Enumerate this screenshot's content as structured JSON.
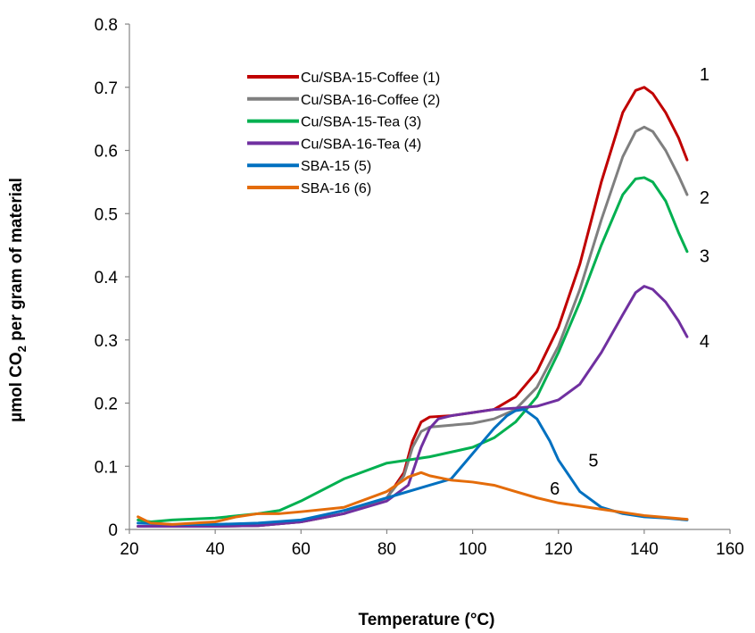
{
  "chart_data": {
    "type": "line",
    "xlabel": "Temperature (°C)",
    "ylabel": {
      "prefix": "µmol CO",
      "subscript": "2",
      "suffix": " per gram of material"
    },
    "xlim": [
      20,
      160
    ],
    "ylim": [
      0,
      0.8
    ],
    "xticks": [
      "20",
      "40",
      "60",
      "80",
      "100",
      "120",
      "140",
      "160"
    ],
    "yticks": [
      "0",
      "0.1",
      "0.2",
      "0.3",
      "0.4",
      "0.5",
      "0.6",
      "0.7",
      "0.8"
    ],
    "grid": false,
    "legend": "top-left",
    "series": [
      {
        "name": "Cu/SBA-15-Coffee (1)",
        "label": "1",
        "color": "#C00000",
        "x": [
          22,
          30,
          40,
          50,
          60,
          70,
          80,
          84,
          86,
          88,
          90,
          95,
          100,
          105,
          110,
          115,
          120,
          125,
          130,
          135,
          138,
          140,
          142,
          145,
          148,
          150
        ],
        "y": [
          0.005,
          0.005,
          0.005,
          0.006,
          0.012,
          0.025,
          0.05,
          0.09,
          0.14,
          0.17,
          0.178,
          0.18,
          0.185,
          0.19,
          0.21,
          0.25,
          0.32,
          0.42,
          0.55,
          0.66,
          0.695,
          0.7,
          0.69,
          0.66,
          0.62,
          0.585
        ]
      },
      {
        "name": "Cu/SBA-16-Coffee (2)",
        "label": "2",
        "color": "#7F7F7F",
        "x": [
          22,
          30,
          40,
          50,
          60,
          70,
          80,
          84,
          86,
          88,
          90,
          95,
          100,
          105,
          110,
          115,
          120,
          125,
          130,
          135,
          138,
          140,
          142,
          145,
          148,
          150
        ],
        "y": [
          0.005,
          0.005,
          0.005,
          0.006,
          0.012,
          0.025,
          0.05,
          0.085,
          0.13,
          0.155,
          0.162,
          0.165,
          0.168,
          0.175,
          0.19,
          0.225,
          0.29,
          0.38,
          0.49,
          0.59,
          0.63,
          0.637,
          0.63,
          0.6,
          0.56,
          0.53
        ]
      },
      {
        "name": "Cu/SBA-15-Tea (3)",
        "label": "3",
        "color": "#00B050",
        "x": [
          22,
          25,
          30,
          40,
          50,
          55,
          60,
          70,
          80,
          90,
          100,
          105,
          110,
          115,
          120,
          125,
          130,
          135,
          138,
          140,
          142,
          145,
          148,
          150
        ],
        "y": [
          0.015,
          0.012,
          0.015,
          0.018,
          0.025,
          0.03,
          0.045,
          0.08,
          0.105,
          0.115,
          0.13,
          0.145,
          0.17,
          0.21,
          0.28,
          0.36,
          0.45,
          0.53,
          0.555,
          0.557,
          0.55,
          0.52,
          0.47,
          0.44
        ]
      },
      {
        "name": "Cu/SBA-16-Tea (4)",
        "label": "4",
        "color": "#7030A0",
        "x": [
          22,
          30,
          40,
          50,
          60,
          70,
          80,
          85,
          88,
          90,
          92,
          95,
          100,
          105,
          110,
          115,
          120,
          125,
          130,
          135,
          138,
          140,
          142,
          145,
          148,
          150
        ],
        "y": [
          0.005,
          0.005,
          0.005,
          0.006,
          0.012,
          0.025,
          0.045,
          0.07,
          0.13,
          0.16,
          0.175,
          0.18,
          0.185,
          0.19,
          0.192,
          0.195,
          0.205,
          0.23,
          0.28,
          0.34,
          0.375,
          0.385,
          0.38,
          0.36,
          0.33,
          0.305
        ]
      },
      {
        "name": "SBA-15 (5)",
        "label": "5",
        "color": "#0070C0",
        "x": [
          22,
          30,
          40,
          50,
          60,
          70,
          80,
          90,
          95,
          100,
          105,
          108,
          110,
          112,
          115,
          118,
          120,
          125,
          130,
          135,
          140,
          145,
          150
        ],
        "y": [
          0.01,
          0.008,
          0.008,
          0.01,
          0.015,
          0.03,
          0.05,
          0.07,
          0.08,
          0.12,
          0.16,
          0.18,
          0.188,
          0.19,
          0.175,
          0.14,
          0.11,
          0.06,
          0.035,
          0.025,
          0.02,
          0.018,
          0.015
        ]
      },
      {
        "name": "SBA-16 (6)",
        "label": "6",
        "color": "#E46C0A",
        "x": [
          22,
          25,
          30,
          40,
          45,
          50,
          55,
          60,
          70,
          80,
          85,
          88,
          90,
          95,
          100,
          105,
          110,
          115,
          120,
          130,
          140,
          150
        ],
        "y": [
          0.02,
          0.01,
          0.008,
          0.012,
          0.02,
          0.025,
          0.025,
          0.028,
          0.035,
          0.06,
          0.083,
          0.09,
          0.085,
          0.078,
          0.075,
          0.07,
          0.06,
          0.05,
          0.042,
          0.032,
          0.022,
          0.016
        ]
      }
    ]
  }
}
